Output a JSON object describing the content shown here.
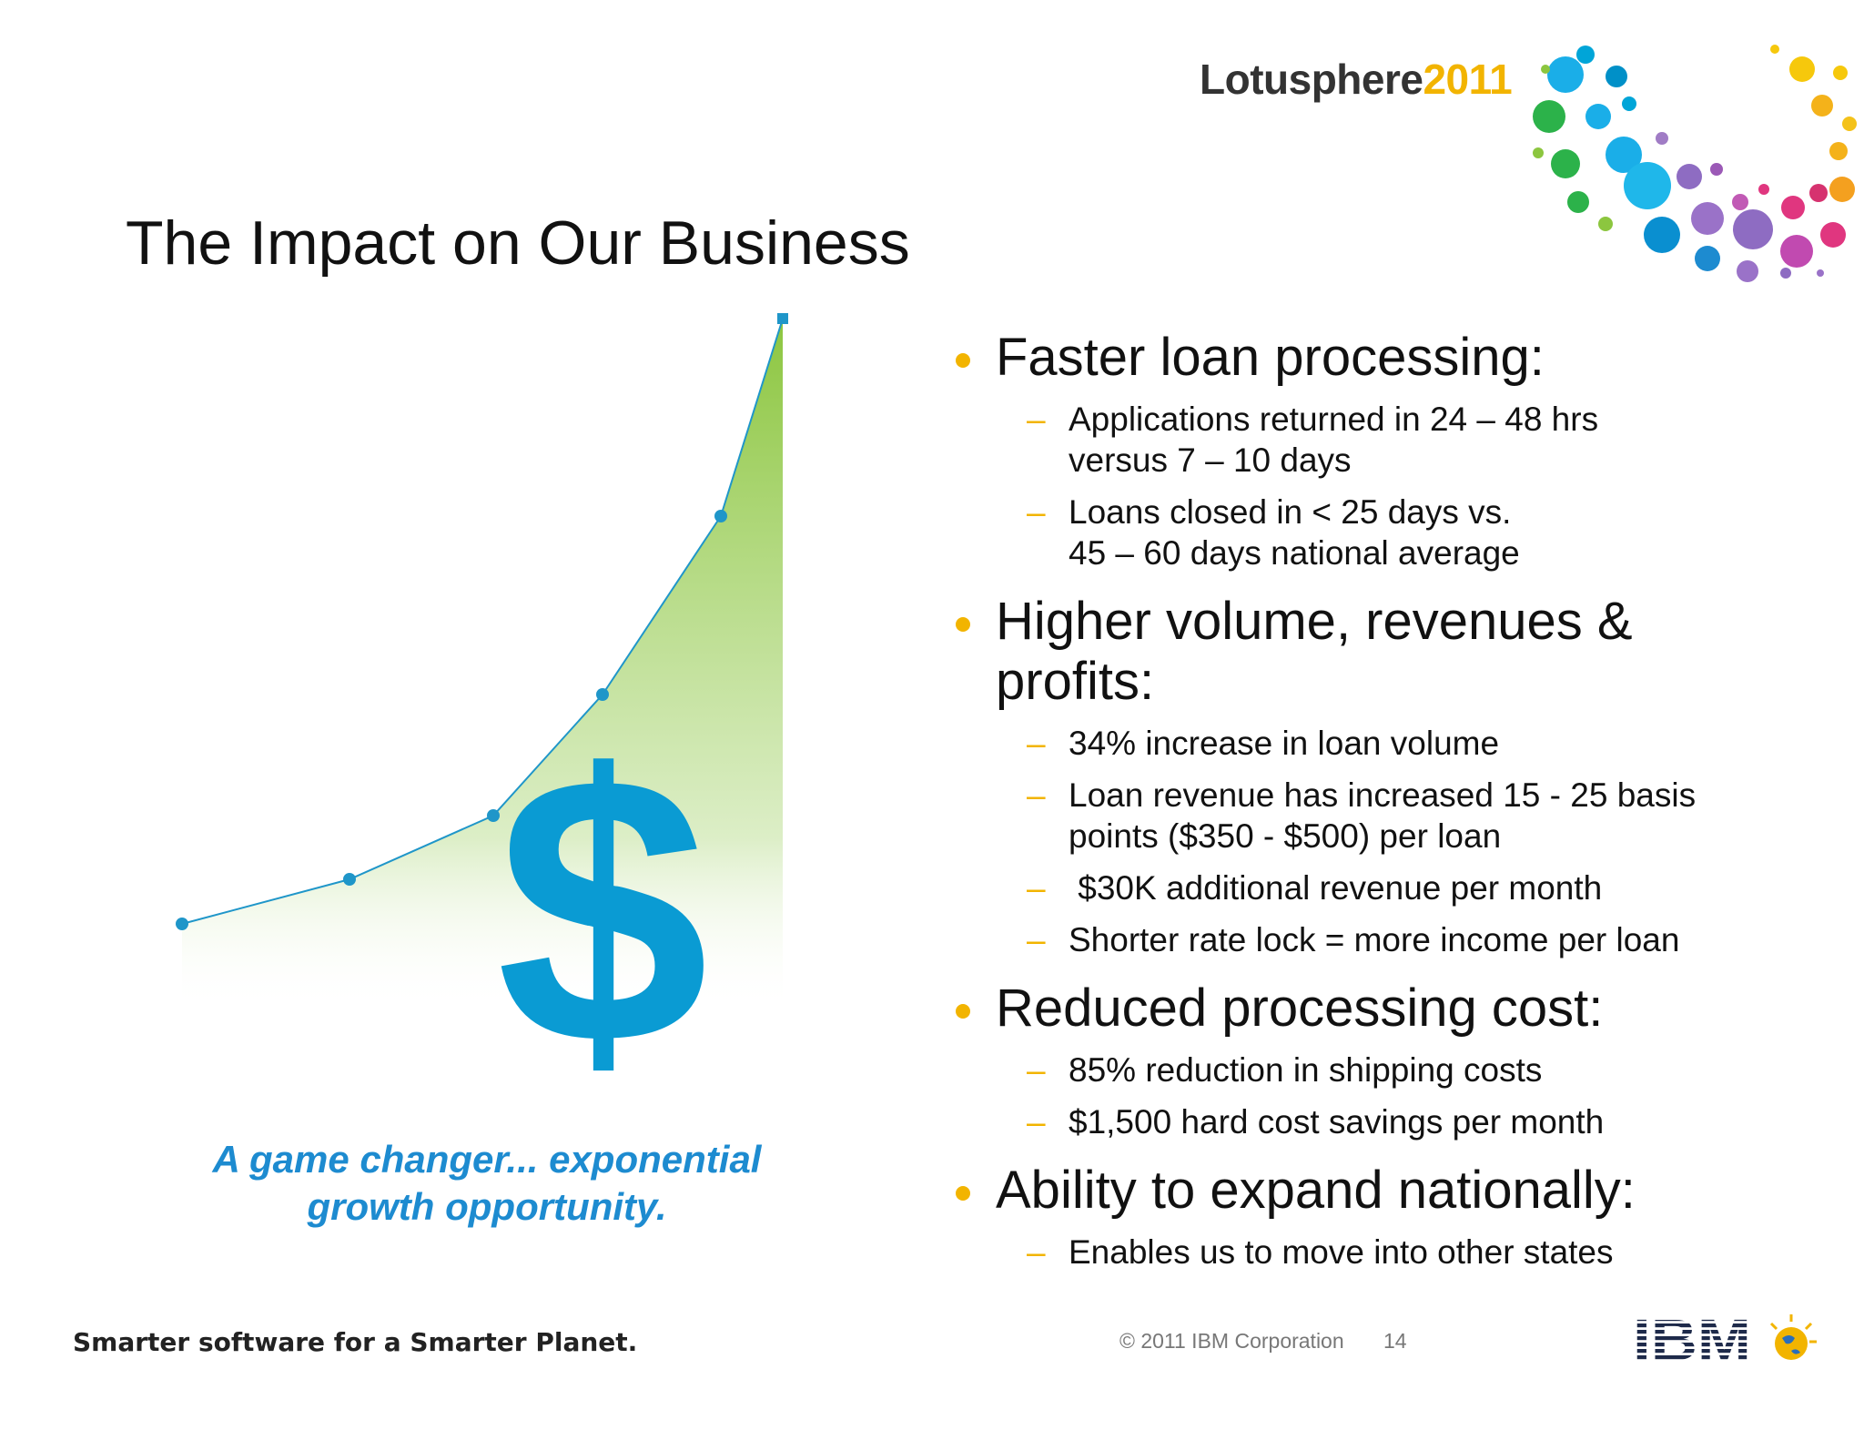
{
  "header": {
    "logo_word": "Lotusphere",
    "logo_year": "2011"
  },
  "title": "The Impact on Our Business",
  "tagline_line1": "A game changer... exponential",
  "tagline_line2": "growth opportunity.",
  "sections": [
    {
      "heading": "Faster loan processing:",
      "items": [
        [
          "Applications returned in 24 – 48 hrs",
          "versus  7 – 10 days"
        ],
        [
          "Loans closed in < 25 days vs.",
          "45 – 60 days national average"
        ]
      ]
    },
    {
      "heading": [
        "Higher volume, revenues &",
        "profits:"
      ],
      "items": [
        [
          "34% increase in loan volume"
        ],
        [
          "Loan revenue has increased 15  - 25 basis",
          "points ($350 - $500) per loan"
        ],
        [
          " $30K additional revenue per month"
        ],
        [
          "Shorter rate lock = more income per loan"
        ]
      ]
    },
    {
      "heading": "Reduced processing cost:",
      "items": [
        [
          "85% reduction in shipping costs"
        ],
        [
          "$1,500 hard cost savings per month"
        ]
      ]
    },
    {
      "heading": "Ability to expand nationally:",
      "items": [
        [
          "Enables us to move into other states"
        ]
      ]
    }
  ],
  "chart": {
    "symbol": "$",
    "colors": {
      "line": "#1f96c9",
      "fill": "#8cc63f",
      "dollar": "#0a9bd3"
    },
    "relative_values": [
      0.05,
      0.12,
      0.22,
      0.41,
      0.69,
      1.0
    ]
  },
  "footer": {
    "tagline": "Smarter software for a Smarter Planet.",
    "copyright": "© 2011 IBM Corporation",
    "page_number": "14",
    "ibm_logo": "IBM"
  },
  "icons": [
    "lotusphere-dots-icon",
    "ibm-globe-icon"
  ]
}
